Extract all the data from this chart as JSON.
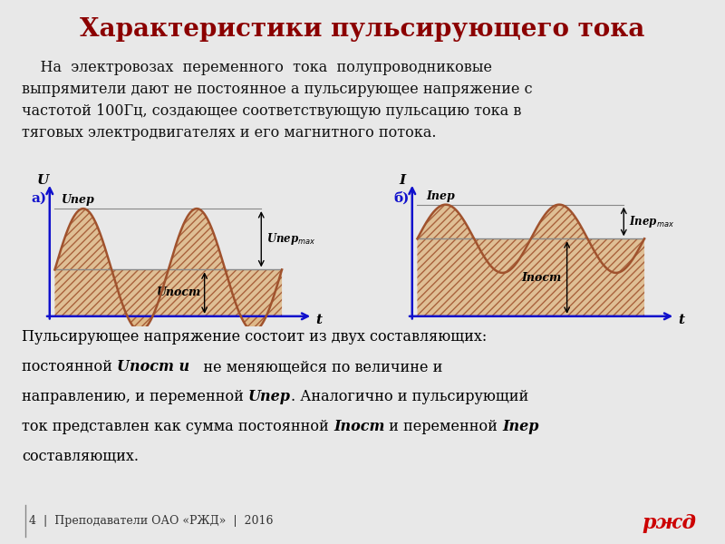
{
  "title": "Характеристики пульсирующего тока",
  "title_color": "#8B0000",
  "bg_color": "#CCCCCC",
  "body_bg": "#E8E8E8",
  "para1_line1": "    На  электровозах  переменного  тока  полупроводниковые",
  "para1_line2": "выпрямители дают не постоянное а пульсирующее напряжение с",
  "para1_line3": "частотой 100Гц, создающее соответствующую пульсацию тока в",
  "para1_line4": "тяговых электродвигателях и его магнитного потока.",
  "footer_text": "4  |  Преподаватели ОАО «РЖД»  |  2016",
  "curve_color": "#A0522D",
  "hatch_color": "#A0522D",
  "fill_color": "#DEB887",
  "axis_color": "#1010CC",
  "dc_level_a": 0.42,
  "amplitude_a": 0.55,
  "dc_level_b": 0.5,
  "amplitude_b": 0.22,
  "text_color": "#111111",
  "label_color_a": "#1010CC",
  "label_color_b": "#1010CC"
}
